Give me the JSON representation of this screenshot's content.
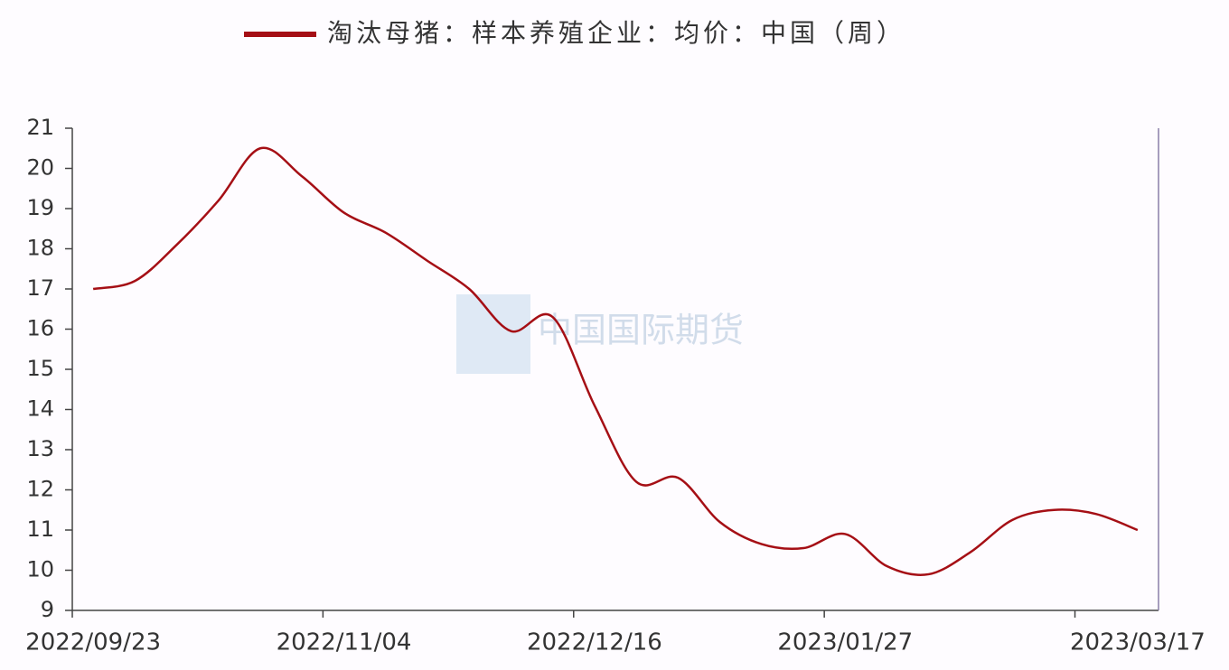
{
  "chart_data": {
    "type": "line",
    "categories": [
      "2022/09/23",
      null,
      null,
      null,
      null,
      null,
      "2022/11/04",
      null,
      null,
      null,
      null,
      null,
      "2022/12/16",
      null,
      null,
      null,
      null,
      null,
      "2023/01/27",
      null,
      null,
      null,
      null,
      null,
      null,
      "2023/03/17"
    ],
    "series": [
      {
        "name": "淘汰母猪：样本养殖企业：均价：中国（周）",
        "color": "#a50f15",
        "values": [
          17.0,
          17.2,
          18.1,
          19.2,
          20.5,
          19.8,
          18.9,
          18.4,
          17.7,
          17.0,
          15.95,
          16.3,
          14.1,
          12.2,
          12.3,
          11.2,
          10.65,
          10.55,
          10.9,
          10.1,
          9.9,
          10.45,
          11.25,
          11.5,
          11.4,
          11.0
        ]
      }
    ],
    "ylim": [
      9,
      21
    ],
    "yticks": [
      9,
      10,
      11,
      12,
      13,
      14,
      15,
      16,
      17,
      18,
      19,
      20,
      21
    ],
    "legend": "top",
    "watermark": "中国国际期货"
  }
}
